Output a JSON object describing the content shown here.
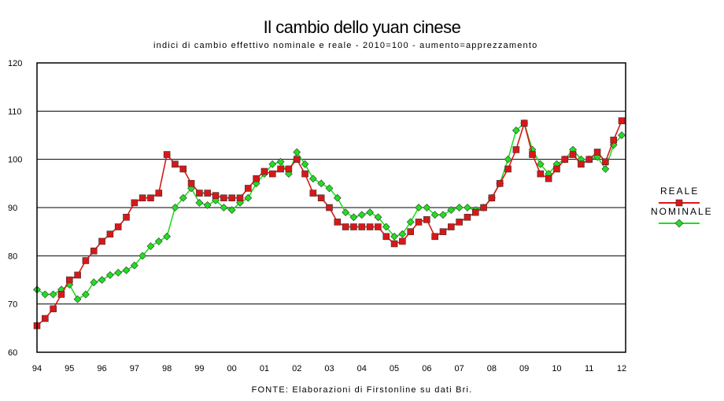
{
  "title": "Il cambio dello yuan cinese",
  "subtitle": "indici di cambio effettivo nominale e reale - 2010=100 - aumento=apprezzamento",
  "source": "FONTE: Elaborazioni di Firstonline su dati Bri.",
  "colors": {
    "reale_fill": "#d81818",
    "reale_line": "#d81818",
    "nominale_fill": "#22dd22",
    "nominale_line": "#22dd22",
    "marker_stroke": "#333333",
    "plot_border": "#000000",
    "gridline": "#000000"
  },
  "chart_data": {
    "type": "line",
    "title": "Il cambio dello yuan cinese",
    "subtitle": "indici di cambio effettivo nominale e reale - 2010=100 - aumento=apprezzamento",
    "xlabel": "",
    "ylabel": "",
    "ylim": [
      60,
      120
    ],
    "yticks": [
      "60",
      "70",
      "80",
      "90",
      "100",
      "110",
      "120"
    ],
    "xticks": [
      "94",
      "95",
      "96",
      "97",
      "98",
      "99",
      "00",
      "01",
      "02",
      "03",
      "04",
      "05",
      "06",
      "07",
      "08",
      "09",
      "10",
      "11",
      "12"
    ],
    "grid": "horizontal",
    "legend_position": "right",
    "series": [
      {
        "name": "REALE",
        "marker": "square",
        "x": [
          1994.0,
          1994.25,
          1994.5,
          1994.75,
          1995.0,
          1995.25,
          1995.5,
          1995.75,
          1996.0,
          1996.25,
          1996.5,
          1996.75,
          1997.0,
          1997.25,
          1997.5,
          1997.75,
          1998.0,
          1998.25,
          1998.5,
          1998.75,
          1999.0,
          1999.25,
          1999.5,
          1999.75,
          2000.0,
          2000.25,
          2000.5,
          2000.75,
          2001.0,
          2001.25,
          2001.5,
          2001.75,
          2002.0,
          2002.25,
          2002.5,
          2002.75,
          2003.0,
          2003.25,
          2003.5,
          2003.75,
          2004.0,
          2004.25,
          2004.5,
          2004.75,
          2005.0,
          2005.25,
          2005.5,
          2005.75,
          2006.0,
          2006.25,
          2006.5,
          2006.75,
          2007.0,
          2007.25,
          2007.5,
          2007.75,
          2008.0,
          2008.25,
          2008.5,
          2008.75,
          2009.0,
          2009.25,
          2009.5,
          2009.75,
          2010.0,
          2010.25,
          2010.5,
          2010.75,
          2011.0,
          2011.25,
          2011.5,
          2011.75,
          2012.0
        ],
        "y": [
          65.5,
          67,
          69,
          72,
          75,
          76,
          79,
          81,
          83,
          84.5,
          86,
          88,
          91,
          92,
          92,
          93,
          101,
          99,
          98,
          95,
          93,
          93,
          92.5,
          92,
          92,
          92,
          94,
          96,
          97.5,
          97,
          98,
          98,
          100,
          97,
          93,
          92,
          90,
          87,
          86,
          86,
          86,
          86,
          86,
          84,
          82.5,
          83,
          85,
          87,
          87.5,
          84,
          85,
          86,
          87,
          88,
          89,
          90,
          92,
          95,
          98,
          102,
          107.5,
          101,
          97,
          96,
          98,
          100,
          101,
          99,
          100,
          101.5,
          99.5,
          104,
          108
        ]
      },
      {
        "name": "NOMINALE",
        "marker": "diamond",
        "x": [
          1994.0,
          1994.25,
          1994.5,
          1994.75,
          1995.0,
          1995.25,
          1995.5,
          1995.75,
          1996.0,
          1996.25,
          1996.5,
          1996.75,
          1997.0,
          1997.25,
          1997.5,
          1997.75,
          1998.0,
          1998.25,
          1998.5,
          1998.75,
          1999.0,
          1999.25,
          1999.5,
          1999.75,
          2000.0,
          2000.25,
          2000.5,
          2000.75,
          2001.0,
          2001.25,
          2001.5,
          2001.75,
          2002.0,
          2002.25,
          2002.5,
          2002.75,
          2003.0,
          2003.25,
          2003.5,
          2003.75,
          2004.0,
          2004.25,
          2004.5,
          2004.75,
          2005.0,
          2005.25,
          2005.5,
          2005.75,
          2006.0,
          2006.25,
          2006.5,
          2006.75,
          2007.0,
          2007.25,
          2007.5,
          2007.75,
          2008.0,
          2008.25,
          2008.5,
          2008.75,
          2009.0,
          2009.25,
          2009.5,
          2009.75,
          2010.0,
          2010.25,
          2010.5,
          2010.75,
          2011.0,
          2011.25,
          2011.5,
          2011.75,
          2012.0
        ],
        "y": [
          73,
          72,
          72,
          73,
          74,
          71,
          72,
          74.5,
          75,
          76,
          76.5,
          77,
          78,
          80,
          82,
          83,
          84,
          90,
          92,
          94,
          91,
          90.5,
          91.5,
          90,
          89.5,
          91,
          92,
          95,
          97,
          99,
          99.5,
          97,
          101.5,
          99,
          96,
          95,
          94,
          92,
          89,
          88,
          88.5,
          89,
          88,
          86,
          84,
          84.5,
          87,
          90,
          90,
          88.5,
          88.5,
          89.5,
          90,
          90,
          89.5,
          90,
          92,
          95,
          100,
          106,
          107.5,
          102,
          99,
          97,
          99,
          100,
          102,
          100,
          100,
          100.5,
          98,
          103,
          105
        ]
      }
    ]
  }
}
